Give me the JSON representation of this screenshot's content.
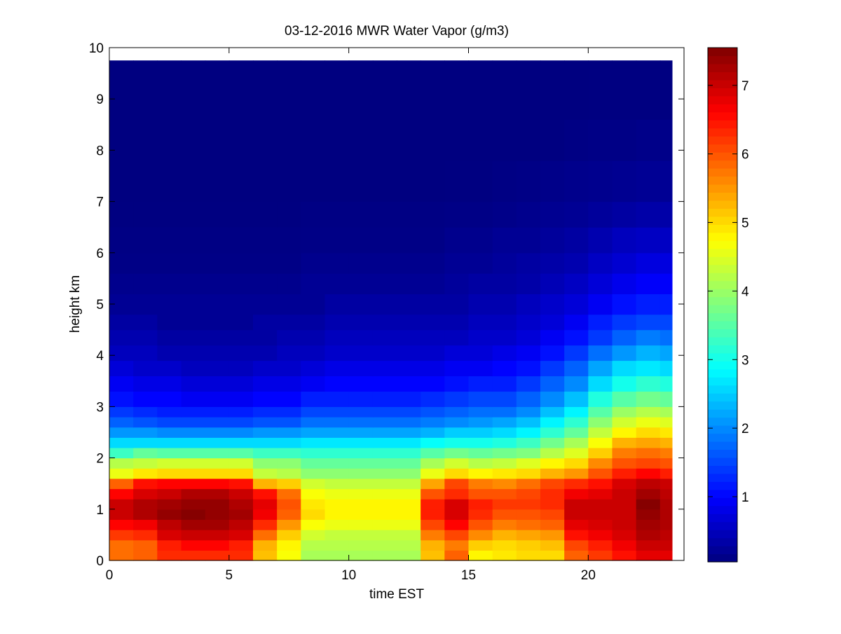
{
  "chart_data": {
    "type": "heatmap",
    "title": "03-12-2016 MWR Water Vapor (g/m3)",
    "xlabel": "time EST",
    "ylabel": "height km",
    "xlim": [
      0,
      24
    ],
    "ylim": [
      0,
      10
    ],
    "x_ticks": [
      0,
      5,
      10,
      15,
      20
    ],
    "y_ticks": [
      0,
      1,
      2,
      3,
      4,
      5,
      6,
      7,
      8,
      9,
      10
    ],
    "colorbar": {
      "colormap": "jet",
      "range": [
        0.05,
        7.55
      ],
      "ticks": [
        1,
        2,
        3,
        4,
        5,
        6,
        7
      ]
    },
    "grid": false,
    "time_hours": [
      0,
      1,
      2,
      3,
      4,
      5,
      6,
      7,
      8,
      9,
      10,
      11,
      12,
      13,
      14,
      15,
      16,
      17,
      18,
      19,
      20,
      21,
      22,
      23
    ],
    "height_km": [
      0,
      0.2,
      0.4,
      0.6,
      0.8,
      1.0,
      1.2,
      1.4,
      1.6,
      1.8,
      2.0,
      2.2,
      2.4,
      2.6,
      2.8,
      3.0,
      3.3,
      3.6,
      3.9,
      4.2,
      4.5,
      4.8,
      5.2,
      5.6,
      6.0,
      6.5,
      7.0,
      7.8,
      8.6,
      9.6
    ],
    "water_vapor_g_m3": [
      [
        5.8,
        5.9,
        6.3,
        6.3,
        6.3,
        6.3,
        5.2,
        4.7,
        4.1,
        4.1,
        4.1,
        4.1,
        4.1,
        5.2,
        5.9,
        4.8,
        4.9,
        5.0,
        5.0,
        5.9,
        6.2,
        6.5,
        6.8,
        6.8
      ],
      [
        5.8,
        5.9,
        6.4,
        6.6,
        6.6,
        6.4,
        5.3,
        4.8,
        4.2,
        4.2,
        4.2,
        4.2,
        4.2,
        5.3,
        5.7,
        5.1,
        5.0,
        5.1,
        5.2,
        6.1,
        6.4,
        6.7,
        7.0,
        7.0
      ],
      [
        6.2,
        6.3,
        6.9,
        7.0,
        7.0,
        6.9,
        5.8,
        5.1,
        4.4,
        4.3,
        4.3,
        4.3,
        4.3,
        5.7,
        6.1,
        5.6,
        5.3,
        5.4,
        5.5,
        6.5,
        6.7,
        6.9,
        7.2,
        7.1
      ],
      [
        6.6,
        6.7,
        7.1,
        7.3,
        7.3,
        7.1,
        6.3,
        5.5,
        4.7,
        4.6,
        4.6,
        4.6,
        4.6,
        6.1,
        6.6,
        6.0,
        5.7,
        5.8,
        5.9,
        6.8,
        6.9,
        7.0,
        7.3,
        7.2
      ],
      [
        7.0,
        7.2,
        7.4,
        7.5,
        7.4,
        7.3,
        6.7,
        5.9,
        5.0,
        4.8,
        4.8,
        4.8,
        4.8,
        6.4,
        6.9,
        6.3,
        6.0,
        6.0,
        6.1,
        7.0,
        7.0,
        7.0,
        7.4,
        7.2
      ],
      [
        7.0,
        7.2,
        7.3,
        7.4,
        7.4,
        7.2,
        6.8,
        6.0,
        4.9,
        4.8,
        4.8,
        4.8,
        4.8,
        6.4,
        6.9,
        6.4,
        6.2,
        6.2,
        6.3,
        7.0,
        7.0,
        7.0,
        7.5,
        7.2
      ],
      [
        6.6,
        6.9,
        7.0,
        7.2,
        7.2,
        7.0,
        6.5,
        5.8,
        4.7,
        4.6,
        4.6,
        4.6,
        4.6,
        6.0,
        6.3,
        6.0,
        6.0,
        6.1,
        6.3,
        6.7,
        6.8,
        7.0,
        7.3,
        7.1
      ],
      [
        5.9,
        6.5,
        6.6,
        6.6,
        6.6,
        6.5,
        5.3,
        5.1,
        4.4,
        4.3,
        4.3,
        4.3,
        4.3,
        5.4,
        6.1,
        5.7,
        5.6,
        5.8,
        6.1,
        6.3,
        6.5,
        6.9,
        7.1,
        7.0
      ],
      [
        4.6,
        4.9,
        5.0,
        5.0,
        5.0,
        5.0,
        4.3,
        4.2,
        3.9,
        3.9,
        3.9,
        3.9,
        3.9,
        4.6,
        5.0,
        4.8,
        4.9,
        5.0,
        5.3,
        5.5,
        6.0,
        6.4,
        6.6,
        6.4
      ],
      [
        4.2,
        4.3,
        4.4,
        4.4,
        4.4,
        4.4,
        3.9,
        3.9,
        3.6,
        3.6,
        3.6,
        3.6,
        3.6,
        4.1,
        4.4,
        4.2,
        4.3,
        4.5,
        4.8,
        5.0,
        5.6,
        6.0,
        6.1,
        6.0
      ],
      [
        3.3,
        3.6,
        3.5,
        3.5,
        3.5,
        3.5,
        3.3,
        3.3,
        3.2,
        3.2,
        3.2,
        3.2,
        3.2,
        3.5,
        3.7,
        3.6,
        3.7,
        3.8,
        4.2,
        4.5,
        5.1,
        5.7,
        5.8,
        5.7
      ],
      [
        2.6,
        2.6,
        2.6,
        2.6,
        2.6,
        2.6,
        2.6,
        2.6,
        2.7,
        2.7,
        2.7,
        2.7,
        2.7,
        2.9,
        3.0,
        3.0,
        3.1,
        3.3,
        3.7,
        4.1,
        4.7,
        5.3,
        5.4,
        5.3
      ],
      [
        2.1,
        2.1,
        2.0,
        2.0,
        2.0,
        2.0,
        2.1,
        2.1,
        2.2,
        2.2,
        2.2,
        2.2,
        2.2,
        2.3,
        2.5,
        2.5,
        2.6,
        2.8,
        3.2,
        3.6,
        4.3,
        4.8,
        5.0,
        4.9
      ],
      [
        1.7,
        1.6,
        1.5,
        1.5,
        1.5,
        1.5,
        1.6,
        1.6,
        1.8,
        1.8,
        1.8,
        1.8,
        1.8,
        1.9,
        2.0,
        2.1,
        2.2,
        2.4,
        2.8,
        3.2,
        3.9,
        4.4,
        4.6,
        4.5
      ],
      [
        1.4,
        1.3,
        1.2,
        1.2,
        1.2,
        1.2,
        1.3,
        1.3,
        1.5,
        1.5,
        1.5,
        1.5,
        1.5,
        1.6,
        1.7,
        1.8,
        1.8,
        2.0,
        2.4,
        2.8,
        3.5,
        4.0,
        4.2,
        4.1
      ],
      [
        1.1,
        1.0,
        1.0,
        0.9,
        0.9,
        0.9,
        1.0,
        1.0,
        1.2,
        1.2,
        1.2,
        1.2,
        1.2,
        1.3,
        1.4,
        1.5,
        1.5,
        1.7,
        2.0,
        2.4,
        3.1,
        3.5,
        3.7,
        3.6
      ],
      [
        0.9,
        0.8,
        0.8,
        0.7,
        0.7,
        0.7,
        0.8,
        0.8,
        0.9,
        1.0,
        1.0,
        1.0,
        1.0,
        1.0,
        1.1,
        1.2,
        1.2,
        1.4,
        1.7,
        2.0,
        2.6,
        3.0,
        3.2,
        3.1
      ],
      [
        0.7,
        0.6,
        0.6,
        0.5,
        0.5,
        0.5,
        0.6,
        0.6,
        0.7,
        0.8,
        0.8,
        0.8,
        0.8,
        0.8,
        0.9,
        0.9,
        1.0,
        1.1,
        1.4,
        1.7,
        2.2,
        2.6,
        2.7,
        2.6
      ],
      [
        0.5,
        0.5,
        0.4,
        0.4,
        0.4,
        0.4,
        0.4,
        0.5,
        0.5,
        0.6,
        0.6,
        0.6,
        0.6,
        0.6,
        0.7,
        0.7,
        0.8,
        0.9,
        1.1,
        1.4,
        1.8,
        2.1,
        2.3,
        2.2
      ],
      [
        0.4,
        0.4,
        0.3,
        0.3,
        0.3,
        0.3,
        0.3,
        0.4,
        0.4,
        0.5,
        0.5,
        0.5,
        0.5,
        0.5,
        0.5,
        0.6,
        0.6,
        0.7,
        0.9,
        1.1,
        1.4,
        1.7,
        1.9,
        1.8
      ],
      [
        0.3,
        0.3,
        0.2,
        0.2,
        0.2,
        0.2,
        0.3,
        0.3,
        0.3,
        0.4,
        0.4,
        0.4,
        0.4,
        0.4,
        0.4,
        0.5,
        0.5,
        0.6,
        0.7,
        0.9,
        1.2,
        1.4,
        1.5,
        1.5
      ],
      [
        0.2,
        0.2,
        0.2,
        0.2,
        0.2,
        0.2,
        0.2,
        0.2,
        0.2,
        0.3,
        0.3,
        0.3,
        0.3,
        0.3,
        0.3,
        0.4,
        0.4,
        0.5,
        0.6,
        0.7,
        0.9,
        1.1,
        1.2,
        1.2
      ],
      [
        0.15,
        0.15,
        0.15,
        0.15,
        0.15,
        0.15,
        0.15,
        0.15,
        0.2,
        0.2,
        0.2,
        0.2,
        0.2,
        0.2,
        0.25,
        0.3,
        0.3,
        0.35,
        0.45,
        0.55,
        0.7,
        0.85,
        0.95,
        0.95
      ],
      [
        0.1,
        0.1,
        0.1,
        0.1,
        0.1,
        0.1,
        0.1,
        0.1,
        0.15,
        0.15,
        0.15,
        0.15,
        0.15,
        0.15,
        0.2,
        0.2,
        0.25,
        0.3,
        0.35,
        0.4,
        0.55,
        0.65,
        0.75,
        0.75
      ],
      [
        0.08,
        0.08,
        0.08,
        0.08,
        0.08,
        0.08,
        0.08,
        0.08,
        0.1,
        0.1,
        0.1,
        0.1,
        0.1,
        0.1,
        0.15,
        0.15,
        0.2,
        0.2,
        0.25,
        0.3,
        0.4,
        0.5,
        0.55,
        0.55
      ],
      [
        0.06,
        0.06,
        0.06,
        0.06,
        0.06,
        0.06,
        0.06,
        0.06,
        0.08,
        0.08,
        0.08,
        0.08,
        0.08,
        0.08,
        0.1,
        0.1,
        0.12,
        0.15,
        0.18,
        0.2,
        0.25,
        0.3,
        0.35,
        0.35
      ],
      [
        0.05,
        0.05,
        0.05,
        0.05,
        0.05,
        0.05,
        0.05,
        0.05,
        0.05,
        0.05,
        0.05,
        0.05,
        0.05,
        0.05,
        0.06,
        0.06,
        0.08,
        0.1,
        0.12,
        0.14,
        0.16,
        0.18,
        0.2,
        0.2
      ],
      [
        0.05,
        0.05,
        0.05,
        0.05,
        0.05,
        0.05,
        0.05,
        0.05,
        0.05,
        0.05,
        0.05,
        0.05,
        0.05,
        0.05,
        0.05,
        0.05,
        0.05,
        0.05,
        0.06,
        0.08,
        0.1,
        0.1,
        0.12,
        0.12
      ],
      [
        0.05,
        0.05,
        0.05,
        0.05,
        0.05,
        0.05,
        0.05,
        0.05,
        0.05,
        0.05,
        0.05,
        0.05,
        0.05,
        0.05,
        0.05,
        0.05,
        0.05,
        0.05,
        0.05,
        0.05,
        0.06,
        0.06,
        0.06,
        0.06
      ],
      [
        0.05,
        0.05,
        0.05,
        0.05,
        0.05,
        0.05,
        0.05,
        0.05,
        0.05,
        0.05,
        0.05,
        0.05,
        0.05,
        0.05,
        0.05,
        0.05,
        0.05,
        0.05,
        0.05,
        0.05,
        0.05,
        0.05,
        0.05,
        0.05
      ]
    ]
  }
}
